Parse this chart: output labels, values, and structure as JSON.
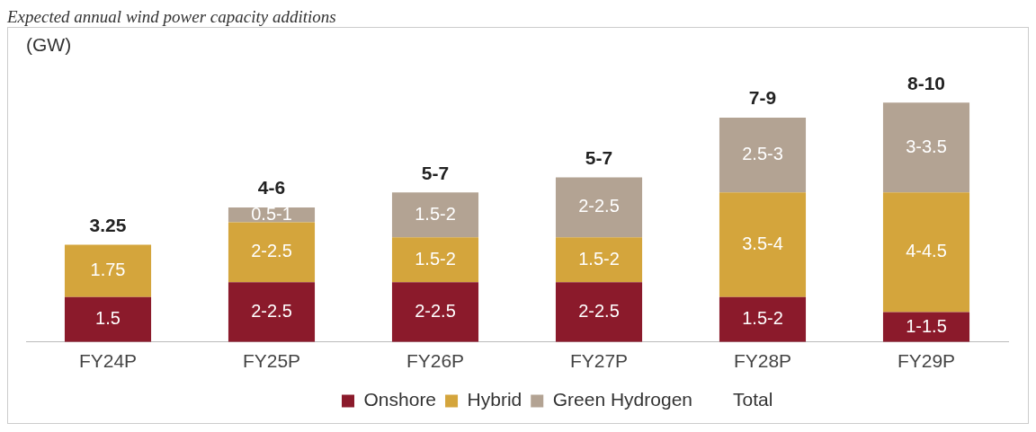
{
  "chart_data": {
    "type": "bar",
    "title": "Expected annual wind power capacity additions",
    "ylabel": "(GW)",
    "stacked": true,
    "categories": [
      "FY24P",
      "FY25P",
      "FY26P",
      "FY27P",
      "FY28P",
      "FY29P"
    ],
    "series": [
      {
        "name": "Onshore",
        "color": "#8b1a2b",
        "values": [
          1.5,
          2,
          2,
          2,
          1.5,
          1
        ],
        "value_labels": [
          "1.5",
          "2-2.5",
          "2-2.5",
          "2-2.5",
          "1.5-2",
          "1-1.5"
        ]
      },
      {
        "name": "Hybrid",
        "color": "#d4a53c",
        "values": [
          1.75,
          2,
          1.5,
          1.5,
          3.5,
          4
        ],
        "value_labels": [
          "1.75",
          "2-2.5",
          "1.5-2",
          "1.5-2",
          "3.5-4",
          "4-4.5"
        ]
      },
      {
        "name": "Green Hydrogen",
        "color": "#b3a393",
        "values": [
          null,
          0.5,
          1.5,
          2,
          2.5,
          3
        ],
        "value_labels": [
          null,
          "0.5-1",
          "1.5-2",
          "2-2.5",
          "2.5-3",
          "3-3.5"
        ]
      }
    ],
    "totals": [
      "3.25",
      "4-6",
      "5-7",
      "5-7",
      "7-9",
      "8-10"
    ],
    "annotations": [
      "Total"
    ],
    "legend": "bottom",
    "grid": false
  }
}
